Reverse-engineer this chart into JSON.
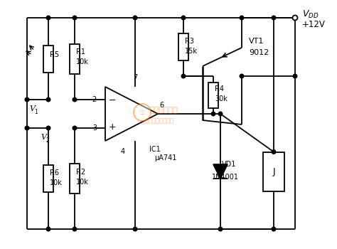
{
  "bg_color": "#ffffff",
  "line_color": "#000000",
  "lw": 1.3,
  "watermark_color": "#ff6600",
  "watermark_alpha": 0.45,
  "labels": {
    "R1": "R1",
    "R1_val": "10k",
    "R2": "R2",
    "R2_val": "10k",
    "R5": "R5",
    "R6": "R6",
    "R6_val": "10k",
    "R3": "R3",
    "R3_val": "15k",
    "R4": "R4",
    "R4_val": "30k",
    "IC1": "IC1",
    "IC1_val": "μA741",
    "VT1": "VT1",
    "VT1_val": "9012",
    "VD1": "VD1",
    "VD1_val": "1N4001",
    "J": "J",
    "V1": "V",
    "V2": "V",
    "VDD_val": "+12V",
    "pin2": "2",
    "pin3": "3",
    "pin4": "4",
    "pin6": "6",
    "pin7": "7"
  }
}
